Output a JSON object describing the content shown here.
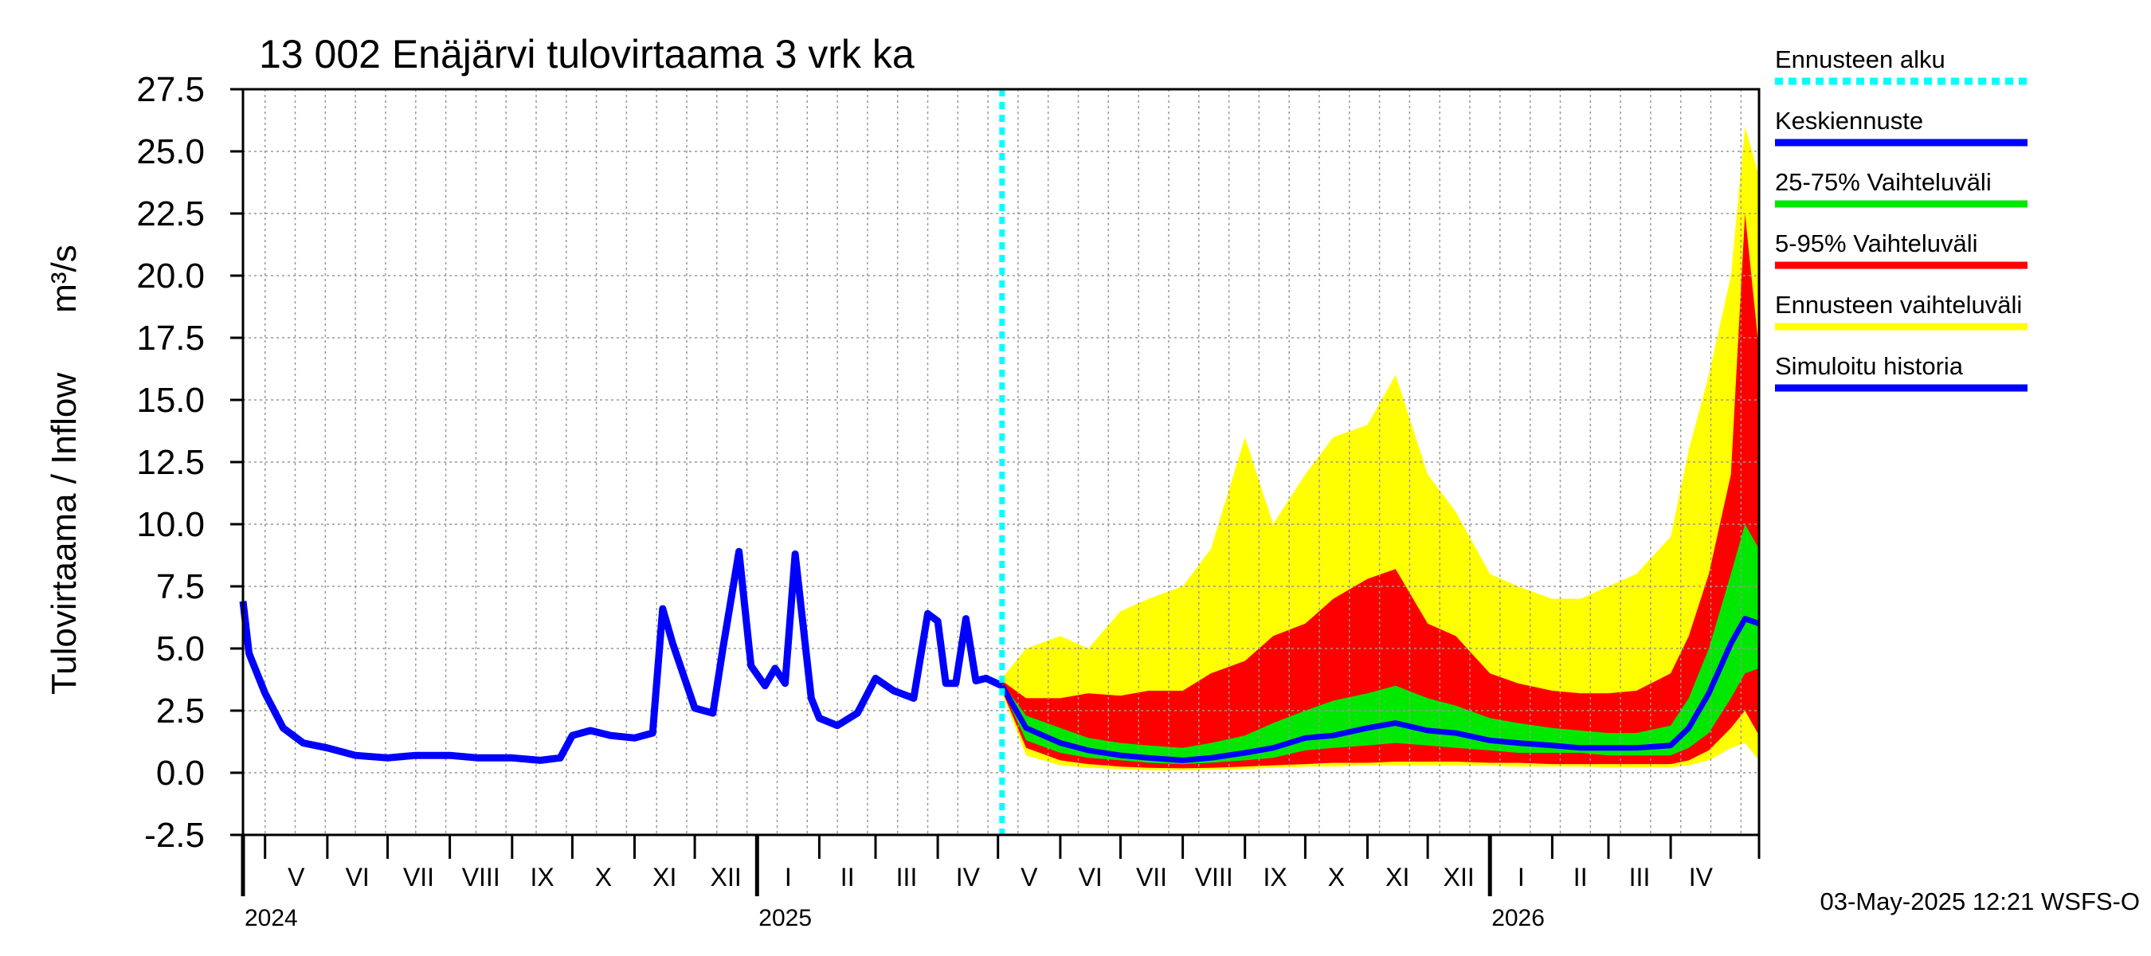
{
  "chart_data": {
    "type": "area",
    "title": "13 002 Enäjärvi tulovirtaama 3 vrk ka",
    "ylabel": "Tulovirtaama / Inflow",
    "yunit": "m³/s",
    "ylim": [
      -2.5,
      27.5
    ],
    "yticks": [
      -2.5,
      0.0,
      2.5,
      5.0,
      7.5,
      10.0,
      12.5,
      15.0,
      17.5,
      20.0,
      22.5,
      25.0,
      27.5
    ],
    "ytick_labels": [
      "-2.5",
      "0.0",
      "2.5",
      "5.0",
      "7.5",
      "10.0",
      "12.5",
      "15.0",
      "17.5",
      "20.0",
      "22.5",
      "25.0",
      "27.5"
    ],
    "xlim": [
      "2024-04-20",
      "2026-05-15"
    ],
    "month_starts": [
      "2024-04-20",
      "2024-05-01",
      "2024-06-01",
      "2024-07-01",
      "2024-08-01",
      "2024-09-01",
      "2024-10-01",
      "2024-11-01",
      "2024-12-01",
      "2025-01-01",
      "2025-02-01",
      "2025-03-01",
      "2025-04-01",
      "2025-05-01",
      "2025-06-01",
      "2025-07-01",
      "2025-08-01",
      "2025-09-01",
      "2025-10-01",
      "2025-11-01",
      "2025-12-01",
      "2026-01-01",
      "2026-02-01",
      "2026-03-01",
      "2026-04-01",
      "2026-05-15"
    ],
    "month_labels": [
      "V",
      "VI",
      "VII",
      "VIII",
      "IX",
      "X",
      "XI",
      "XII",
      "I",
      "II",
      "III",
      "IV",
      "V",
      "VI",
      "VII",
      "VIII",
      "IX",
      "X",
      "XI",
      "XII",
      "I",
      "II",
      "III",
      "IV"
    ],
    "month_label_dates": [
      "2024-05-01",
      "2024-06-01",
      "2024-07-01",
      "2024-08-01",
      "2024-09-01",
      "2024-10-01",
      "2024-11-01",
      "2024-12-01",
      "2025-01-01",
      "2025-02-01",
      "2025-03-01",
      "2025-04-01",
      "2025-05-01",
      "2025-06-01",
      "2025-07-01",
      "2025-08-01",
      "2025-09-01",
      "2025-10-01",
      "2025-11-01",
      "2025-12-01",
      "2026-01-01",
      "2026-02-01",
      "2026-03-01",
      "2026-04-01"
    ],
    "years": [
      {
        "label": "2024",
        "date": "2024-04-20"
      },
      {
        "label": "2025",
        "date": "2025-01-01"
      },
      {
        "label": "2026",
        "date": "2026-01-01"
      }
    ],
    "forecast_start": "2025-05-03",
    "history": {
      "name": "Simuloitu historia",
      "x": [
        "2024-04-20",
        "2024-04-23",
        "2024-05-01",
        "2024-05-10",
        "2024-05-20",
        "2024-06-01",
        "2024-06-15",
        "2024-07-01",
        "2024-07-15",
        "2024-08-01",
        "2024-08-15",
        "2024-09-01",
        "2024-09-15",
        "2024-09-25",
        "2024-10-01",
        "2024-10-10",
        "2024-10-20",
        "2024-11-01",
        "2024-11-10",
        "2024-11-15",
        "2024-11-20",
        "2024-12-01",
        "2024-12-10",
        "2024-12-15",
        "2024-12-23",
        "2024-12-29",
        "2025-01-05",
        "2025-01-10",
        "2025-01-15",
        "2025-01-20",
        "2025-01-28",
        "2025-02-01",
        "2025-02-10",
        "2025-02-20",
        "2025-03-01",
        "2025-03-10",
        "2025-03-20",
        "2025-03-27",
        "2025-04-01",
        "2025-04-05",
        "2025-04-10",
        "2025-04-15",
        "2025-04-20",
        "2025-04-25",
        "2025-05-03"
      ],
      "y": [
        6.9,
        4.8,
        3.2,
        1.8,
        1.2,
        1.0,
        0.7,
        0.6,
        0.7,
        0.7,
        0.6,
        0.6,
        0.5,
        0.6,
        1.5,
        1.7,
        1.5,
        1.4,
        1.6,
        6.6,
        5.2,
        2.6,
        2.4,
        5.0,
        8.9,
        4.3,
        3.5,
        4.2,
        3.6,
        8.8,
        3.0,
        2.2,
        1.9,
        2.4,
        3.8,
        3.3,
        3.0,
        6.4,
        6.1,
        3.6,
        3.6,
        6.2,
        3.7,
        3.8,
        3.5
      ]
    },
    "forecast_dates": [
      "2025-05-03",
      "2025-05-15",
      "2025-06-01",
      "2025-06-15",
      "2025-07-01",
      "2025-07-15",
      "2025-08-01",
      "2025-08-15",
      "2025-09-01",
      "2025-09-15",
      "2025-10-01",
      "2025-10-15",
      "2025-11-01",
      "2025-11-15",
      "2025-12-01",
      "2025-12-15",
      "2026-01-01",
      "2026-01-15",
      "2026-02-01",
      "2026-02-15",
      "2026-03-01",
      "2026-03-15",
      "2026-04-01",
      "2026-04-10",
      "2026-04-20",
      "2026-05-01",
      "2026-05-08",
      "2026-05-15"
    ],
    "mean_forecast": {
      "name": "Keskiennuste",
      "values": [
        3.5,
        1.8,
        1.2,
        0.9,
        0.7,
        0.6,
        0.5,
        0.6,
        0.8,
        1.0,
        1.4,
        1.5,
        1.8,
        2.0,
        1.7,
        1.6,
        1.3,
        1.2,
        1.1,
        1.0,
        1.0,
        1.0,
        1.1,
        1.8,
        3.2,
        5.2,
        6.2,
        6.0
      ]
    },
    "p25_75": {
      "name": "25-75% Vaihteluväli",
      "lower": [
        3.4,
        1.3,
        0.8,
        0.6,
        0.5,
        0.4,
        0.35,
        0.4,
        0.5,
        0.6,
        0.9,
        1.0,
        1.1,
        1.2,
        1.1,
        1.0,
        0.9,
        0.8,
        0.8,
        0.8,
        0.7,
        0.7,
        0.7,
        1.0,
        1.6,
        3.0,
        4.0,
        4.2
      ],
      "upper": [
        3.6,
        2.3,
        1.8,
        1.4,
        1.2,
        1.1,
        1.0,
        1.2,
        1.5,
        2.0,
        2.5,
        2.9,
        3.2,
        3.5,
        3.0,
        2.7,
        2.2,
        2.0,
        1.8,
        1.7,
        1.6,
        1.6,
        1.9,
        3.0,
        5.0,
        8.0,
        10.0,
        9.0
      ]
    },
    "p5_95": {
      "name": "5-95% Vaihteluväli",
      "lower": [
        3.3,
        1.0,
        0.5,
        0.35,
        0.25,
        0.2,
        0.18,
        0.2,
        0.25,
        0.3,
        0.35,
        0.4,
        0.4,
        0.45,
        0.45,
        0.45,
        0.4,
        0.4,
        0.35,
        0.35,
        0.35,
        0.35,
        0.35,
        0.5,
        0.9,
        1.8,
        2.5,
        1.5
      ],
      "upper": [
        3.7,
        3.0,
        3.0,
        3.2,
        3.1,
        3.3,
        3.3,
        4.0,
        4.5,
        5.5,
        6.0,
        7.0,
        7.8,
        8.2,
        6.0,
        5.5,
        4.0,
        3.6,
        3.3,
        3.2,
        3.2,
        3.3,
        4.0,
        5.5,
        8.0,
        12.0,
        22.5,
        17.0
      ]
    },
    "range_all": {
      "name": "Ennusteen vaihteluväli",
      "lower": [
        3.2,
        0.7,
        0.3,
        0.2,
        0.15,
        0.1,
        0.1,
        0.12,
        0.15,
        0.2,
        0.25,
        0.25,
        0.3,
        0.3,
        0.3,
        0.3,
        0.28,
        0.25,
        0.25,
        0.25,
        0.22,
        0.22,
        0.22,
        0.3,
        0.5,
        1.0,
        1.2,
        0.5
      ],
      "upper": [
        3.8,
        5.0,
        5.5,
        5.0,
        6.5,
        7.0,
        7.5,
        9.0,
        13.5,
        10.0,
        12.0,
        13.5,
        14.0,
        16.0,
        12.0,
        10.5,
        8.0,
        7.5,
        7.0,
        7.0,
        7.5,
        8.0,
        9.5,
        13.0,
        16.0,
        20.0,
        26.0,
        24.0
      ]
    },
    "colors": {
      "history": "#0000ff",
      "mean": "#0000ff",
      "p25_75": "#00e800",
      "p5_95": "#ff0000",
      "range_all": "#ffff00",
      "forecast_start": "#00ffff",
      "grid": "#999999"
    },
    "grid": true,
    "legend_position": "right",
    "legend": [
      {
        "label": "Ennusteen alku",
        "color": "#00ffff",
        "style": "dashed"
      },
      {
        "label": "Keskiennuste",
        "color": "#0000ff",
        "style": "solid"
      },
      {
        "label": "25-75% Vaihteluväli",
        "color": "#00e800",
        "style": "solid"
      },
      {
        "label": "5-95% Vaihteluväli",
        "color": "#ff0000",
        "style": "solid"
      },
      {
        "label": "Ennusteen vaihteluväli",
        "color": "#ffff00",
        "style": "solid"
      },
      {
        "label": "Simuloitu historia",
        "color": "#0000ff",
        "style": "solid"
      }
    ],
    "footer": "03-May-2025 12:21 WSFS-O"
  }
}
